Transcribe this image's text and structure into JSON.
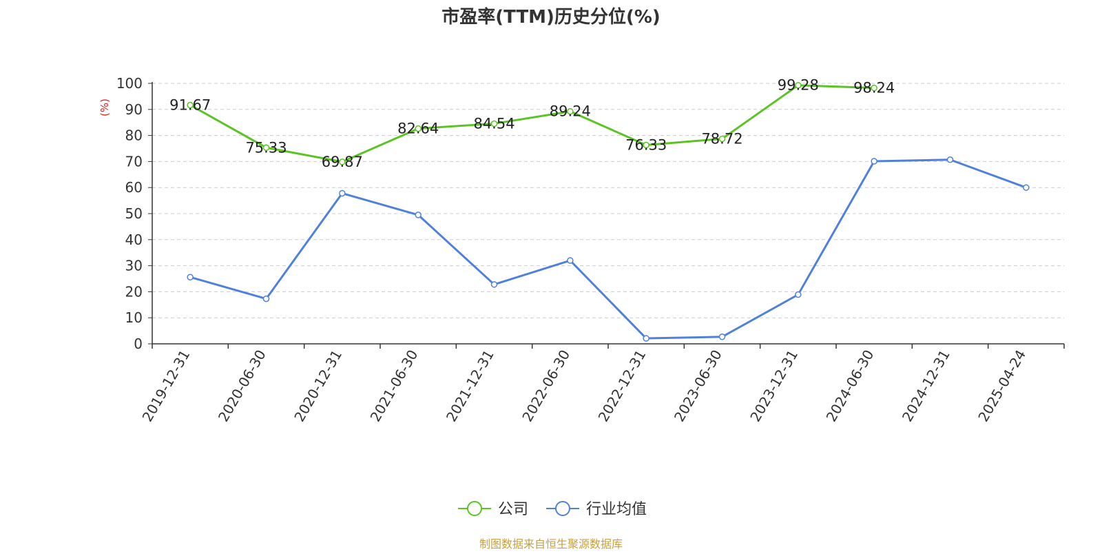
{
  "chart_data": {
    "type": "line",
    "title": "市盈率(TTM)历史分位(%)",
    "ylabel": "(%)",
    "xlabel": "",
    "ylim": [
      0,
      100
    ],
    "yticks": [
      0,
      10,
      20,
      30,
      40,
      50,
      60,
      70,
      80,
      90,
      100
    ],
    "categories": [
      "2019-12-31",
      "2020-06-30",
      "2020-12-31",
      "2021-06-30",
      "2021-12-31",
      "2022-06-30",
      "2022-12-31",
      "2023-06-30",
      "2023-12-31",
      "2024-06-30",
      "2024-12-31",
      "2025-04-24"
    ],
    "grid": "horizontal dashed",
    "legend_position": "bottom-center",
    "series": [
      {
        "name": "公司",
        "color": "#5bc424",
        "show_labels": true,
        "values": [
          91.67,
          75.33,
          69.87,
          82.64,
          84.54,
          89.24,
          76.33,
          78.72,
          99.28,
          98.24,
          null,
          null
        ]
      },
      {
        "name": "行业均值",
        "color": "#4f81dc",
        "show_labels": false,
        "values": [
          25.6,
          17.3,
          57.8,
          49.5,
          22.8,
          32.0,
          2.1,
          2.7,
          18.9,
          70.1,
          70.7,
          60.0
        ]
      }
    ]
  },
  "footer": {
    "source": "制图数据来自恒生聚源数据库",
    "source_color": "#c8a040"
  }
}
